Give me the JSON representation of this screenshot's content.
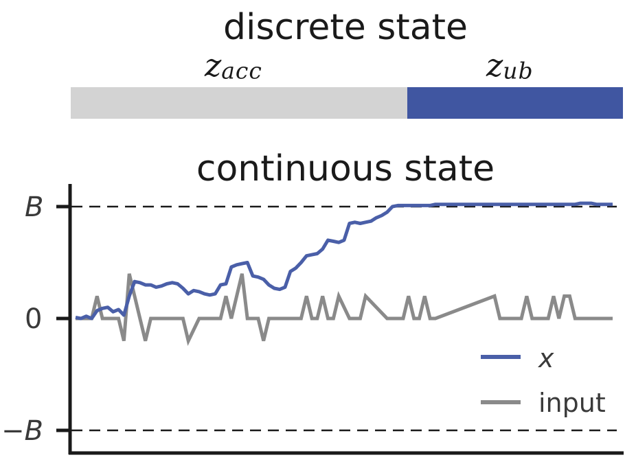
{
  "discrete_panel": {
    "title": "discrete state",
    "segments": [
      {
        "label_main": "z",
        "label_sub": "acc",
        "start": 0,
        "end": 0.61,
        "color": "#d3d3d3"
      },
      {
        "label_main": "z",
        "label_sub": "ub",
        "start": 0.61,
        "end": 1.0,
        "color": "#4056a1"
      }
    ]
  },
  "chart_data": {
    "type": "line",
    "title": "continuous state",
    "xlabel": "",
    "ylabel": "",
    "xlim": [
      0,
      100
    ],
    "ylim": [
      -1.15,
      1.15
    ],
    "yticks": [
      {
        "value": 1,
        "label": "B"
      },
      {
        "value": 0,
        "label": "0"
      },
      {
        "value": -1,
        "label": "−B"
      }
    ],
    "reference_lines": [
      1,
      -1
    ],
    "legend_position": "bottom-right",
    "series": [
      {
        "name": "x",
        "color": "#4a5fa8",
        "x": [
          0,
          1,
          2,
          3,
          4,
          5,
          6,
          7,
          8,
          9,
          10,
          11,
          12,
          13,
          14,
          15,
          16,
          17,
          18,
          19,
          20,
          21,
          22,
          23,
          24,
          25,
          26,
          27,
          28,
          29,
          30,
          31,
          32,
          33,
          34,
          35,
          36,
          37,
          38,
          39,
          40,
          41,
          42,
          43,
          44,
          45,
          46,
          47,
          48,
          49,
          50,
          51,
          52,
          53,
          54,
          55,
          56,
          57,
          58,
          59,
          60,
          61,
          62,
          63,
          64,
          65,
          66,
          67,
          68,
          69,
          70,
          71,
          72,
          73,
          74,
          75,
          76,
          77,
          78,
          79,
          80,
          81,
          82,
          83,
          84,
          85,
          86,
          87,
          88,
          89,
          90,
          91,
          92,
          93,
          94,
          95,
          96,
          97,
          98,
          99,
          100
        ],
        "y": [
          0.01,
          0.0,
          0.02,
          0.0,
          0.07,
          0.09,
          0.1,
          0.06,
          0.08,
          0.03,
          0.2,
          0.33,
          0.32,
          0.3,
          0.3,
          0.28,
          0.29,
          0.31,
          0.32,
          0.31,
          0.27,
          0.22,
          0.25,
          0.24,
          0.22,
          0.21,
          0.22,
          0.3,
          0.31,
          0.46,
          0.48,
          0.49,
          0.5,
          0.38,
          0.37,
          0.35,
          0.3,
          0.27,
          0.26,
          0.28,
          0.42,
          0.45,
          0.5,
          0.56,
          0.57,
          0.58,
          0.62,
          0.7,
          0.69,
          0.68,
          0.7,
          0.85,
          0.86,
          0.85,
          0.86,
          0.87,
          0.9,
          0.92,
          0.95,
          1.0,
          1.01,
          1.01,
          1.01,
          1.01,
          1.01,
          1.01,
          1.01,
          1.02,
          1.02,
          1.02,
          1.02,
          1.02,
          1.02,
          1.02,
          1.02,
          1.02,
          1.02,
          1.02,
          1.02,
          1.02,
          1.02,
          1.02,
          1.02,
          1.02,
          1.02,
          1.02,
          1.02,
          1.02,
          1.02,
          1.02,
          1.02,
          1.02,
          1.02,
          1.02,
          1.03,
          1.03,
          1.03,
          1.02,
          1.02,
          1.02,
          1.02
        ]
      },
      {
        "name": "input",
        "color": "#8a8a8a",
        "x": [
          0,
          2,
          3,
          4,
          5,
          6,
          7,
          8,
          9,
          10,
          11,
          12,
          13,
          14,
          15,
          19,
          20,
          21,
          23,
          25,
          26,
          27,
          28,
          29,
          30,
          31,
          32,
          33,
          34,
          35,
          36,
          40,
          41,
          42,
          43,
          44,
          45,
          46,
          47,
          48,
          49,
          51,
          52,
          53,
          54,
          58,
          59,
          60,
          61,
          62,
          63,
          64,
          65,
          66,
          67,
          78,
          79,
          80,
          81,
          82,
          83,
          84,
          85,
          87,
          88,
          89,
          90,
          91,
          92,
          93,
          97,
          100
        ],
        "y": [
          0,
          0,
          0,
          0.2,
          0,
          0,
          0,
          0,
          -0.2,
          0.4,
          0.2,
          0,
          -0.2,
          0,
          0,
          0,
          0,
          -0.2,
          0,
          0,
          0,
          0,
          0.2,
          0,
          0.2,
          0.4,
          0,
          0,
          0,
          -0.2,
          0,
          0,
          0,
          0,
          0.2,
          0,
          0,
          0.2,
          0,
          0,
          0.2,
          0,
          0,
          0,
          0.2,
          0,
          0,
          0,
          0,
          0.2,
          0,
          0,
          0.2,
          0,
          0,
          0.2,
          0,
          0,
          0,
          0,
          0,
          0.2,
          0,
          0,
          0,
          0.2,
          0,
          0.2,
          0.2,
          0,
          0,
          0
        ]
      }
    ]
  },
  "colors": {
    "axis": "#1a1a1a",
    "dashed": "#1a1a1a"
  }
}
